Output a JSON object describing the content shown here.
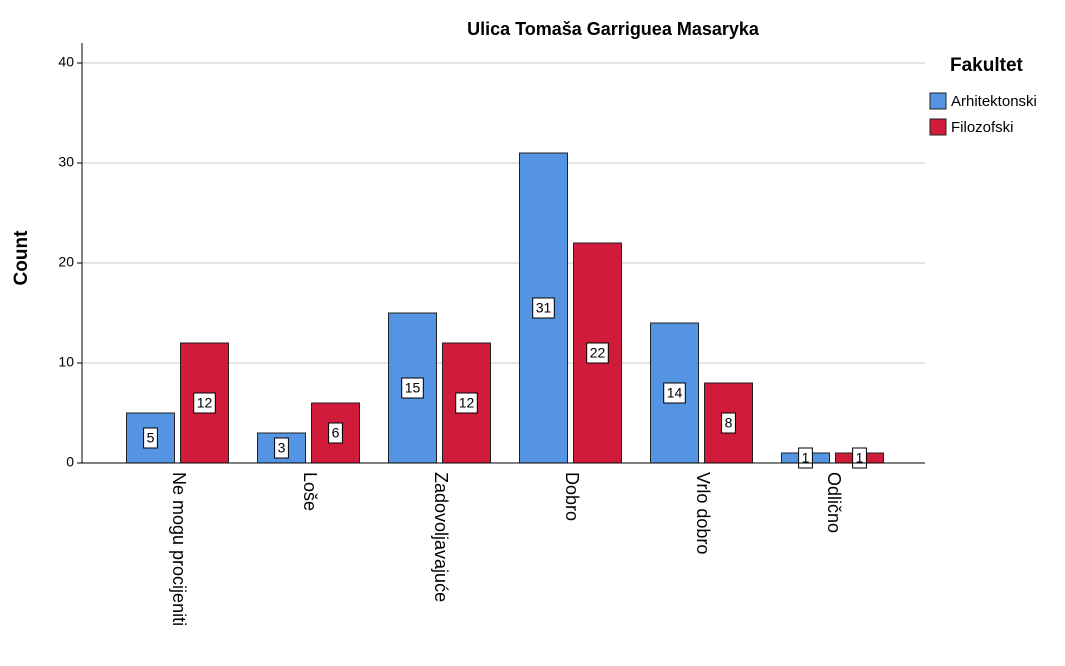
{
  "chart_data": {
    "type": "bar",
    "title": "Ulica Tomaša Garriguea Masaryka",
    "y_label": "Count",
    "categories": [
      "Ne mogu procijeniti",
      "Loše",
      "Zadovoljavajuće",
      "Dobro",
      "Vrlo dobro",
      "Odlično"
    ],
    "series": [
      {
        "name": "Arhitektonski",
        "color": "#5594e2",
        "values": [
          5,
          3,
          15,
          31,
          14,
          1
        ]
      },
      {
        "name": "Filozofski",
        "color": "#d01c3a",
        "values": [
          12,
          6,
          12,
          22,
          8,
          1
        ]
      }
    ],
    "legend_title": "Fakultet",
    "legend": "right",
    "ylim": [
      0,
      42
    ],
    "yticks": [
      0,
      10,
      20,
      30,
      40
    ],
    "grid": true
  }
}
